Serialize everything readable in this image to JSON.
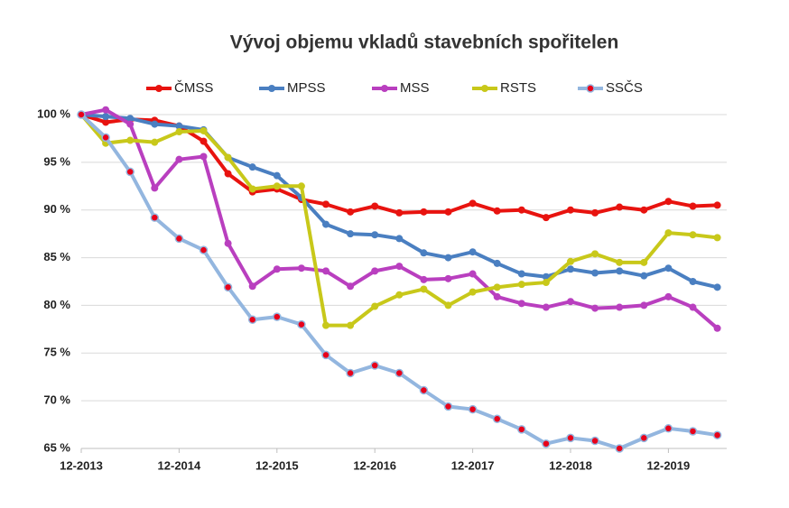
{
  "chart_data": {
    "type": "line",
    "title": "Vývoj objemu vkladů stavebních spořitelen",
    "categories": [
      "12-2013",
      null,
      null,
      null,
      "12-2014",
      null,
      null,
      null,
      "12-2015",
      null,
      null,
      null,
      "12-2016",
      null,
      null,
      null,
      "12-2017",
      null,
      null,
      null,
      "12-2018",
      null,
      null,
      null,
      "12-2019",
      null,
      null
    ],
    "series": [
      {
        "name": "ČMSS",
        "color": "#e8130f",
        "values": [
          100,
          99.2,
          99.5,
          99.4,
          98.8,
          97.2,
          93.8,
          91.9,
          92.2,
          91.1,
          90.6,
          89.8,
          90.4,
          89.7,
          89.8,
          89.8,
          90.7,
          89.9,
          90.0,
          89.2,
          90.0,
          89.7,
          90.3,
          90.0,
          90.9,
          90.4,
          90.5
        ]
      },
      {
        "name": "MPSS",
        "color": "#4a7fc1",
        "values": [
          100,
          99.8,
          99.6,
          99.0,
          98.8,
          98.4,
          95.5,
          94.5,
          93.6,
          91.3,
          88.5,
          87.5,
          87.4,
          87.0,
          85.5,
          85.0,
          85.6,
          84.4,
          83.3,
          83.0,
          83.8,
          83.4,
          83.6,
          83.1,
          83.9,
          82.5,
          81.9
        ]
      },
      {
        "name": "MSS",
        "color": "#b93fbf",
        "values": [
          100,
          100.5,
          99.0,
          92.3,
          95.3,
          95.6,
          86.5,
          82.0,
          83.8,
          83.9,
          83.6,
          82.0,
          83.6,
          84.1,
          82.7,
          82.8,
          83.3,
          80.9,
          80.2,
          79.8,
          80.4,
          79.7,
          79.8,
          80.0,
          80.9,
          79.8,
          77.6
        ]
      },
      {
        "name": "RSTS",
        "color": "#c8c81a",
        "values": [
          100,
          97.0,
          97.3,
          97.1,
          98.2,
          98.3,
          95.5,
          92.2,
          92.5,
          92.5,
          77.9,
          77.9,
          79.9,
          81.1,
          81.7,
          80.0,
          81.4,
          81.9,
          82.2,
          82.4,
          84.6,
          85.4,
          84.5,
          84.5,
          87.6,
          87.4,
          87.1
        ]
      },
      {
        "name": "SSČS",
        "color": "#93b6df",
        "marker_color": "#e8001a",
        "values": [
          100,
          97.6,
          94.0,
          89.2,
          87.0,
          85.8,
          81.9,
          78.5,
          78.8,
          78.0,
          74.8,
          72.9,
          73.7,
          72.9,
          71.1,
          69.4,
          69.1,
          68.1,
          67.0,
          65.5,
          66.1,
          65.8,
          65.0,
          66.1,
          67.1,
          66.8,
          66.4
        ]
      }
    ],
    "ylim": [
      65,
      100
    ],
    "yticks": [
      {
        "value": 65,
        "label": "65 %"
      },
      {
        "value": 70,
        "label": "70 %"
      },
      {
        "value": 75,
        "label": "75 %"
      },
      {
        "value": 80,
        "label": "80 %"
      },
      {
        "value": 85,
        "label": "85 %"
      },
      {
        "value": 90,
        "label": "90 %"
      },
      {
        "value": 95,
        "label": "95 %"
      },
      {
        "value": 100,
        "label": "100 %"
      }
    ],
    "grid": true,
    "legend": "top"
  }
}
